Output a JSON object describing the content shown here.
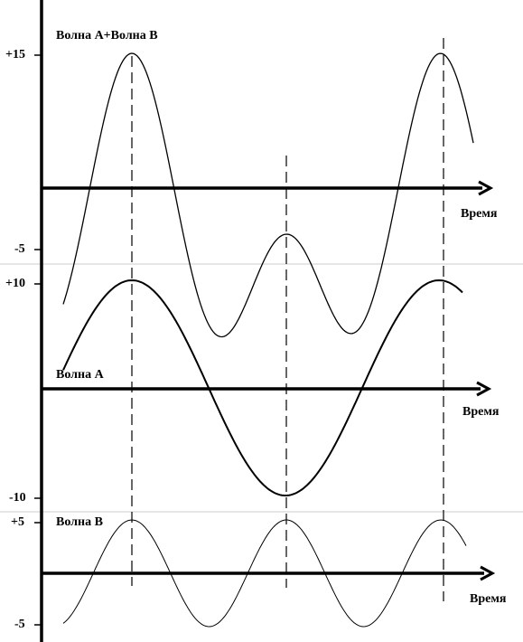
{
  "panels": [
    {
      "label": "Волна А+Волна В",
      "ticks": [
        "+15",
        "-5"
      ],
      "axis_label": "Время"
    },
    {
      "label": "Волна А",
      "ticks": [
        "+10",
        "-10"
      ],
      "axis_label": "Время"
    },
    {
      "label": "Волна В",
      "ticks": [
        "+5",
        "-5"
      ],
      "axis_label": "Время"
    }
  ]
}
